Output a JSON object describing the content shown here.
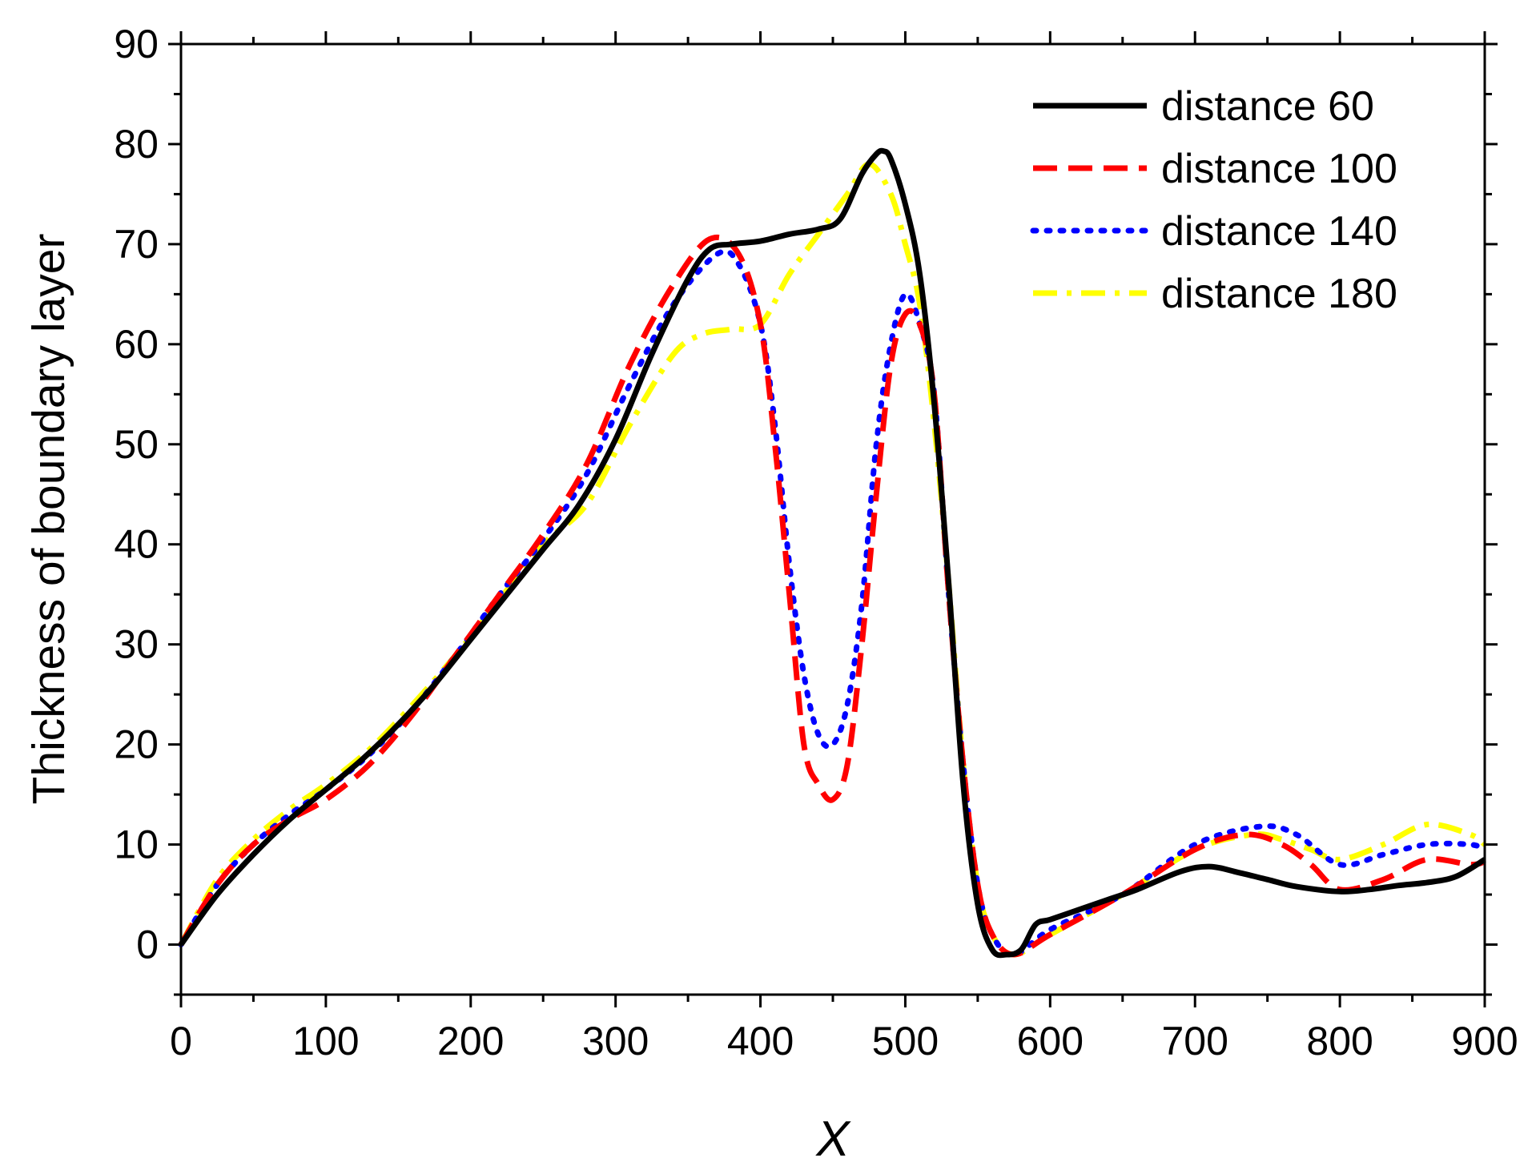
{
  "chart_data": {
    "type": "line",
    "xlabel": "X",
    "ylabel": "Thickness of boundary layer",
    "xlim": [
      0,
      900
    ],
    "ylim": [
      -5,
      90
    ],
    "xticks": [
      0,
      100,
      200,
      300,
      400,
      500,
      600,
      700,
      800,
      900
    ],
    "yticks": [
      0,
      10,
      20,
      30,
      40,
      50,
      60,
      70,
      80,
      90
    ],
    "grid": false,
    "legend_position": "top-right",
    "series": [
      {
        "name": "distance 60",
        "color": "#000000",
        "style": "solid",
        "x": [
          0,
          25,
          50,
          75,
          100,
          125,
          150,
          175,
          200,
          225,
          250,
          275,
          300,
          325,
          350,
          365,
          380,
          400,
          420,
          440,
          455,
          470,
          480,
          485,
          490,
          500,
          510,
          520,
          530,
          540,
          550,
          560,
          570,
          580,
          590,
          600,
          620,
          640,
          660,
          690,
          710,
          730,
          750,
          770,
          800,
          820,
          840,
          860,
          880,
          900
        ],
        "y": [
          0,
          5,
          9,
          12.5,
          15.5,
          18.5,
          22,
          26,
          30.5,
          35,
          39.5,
          44,
          50.5,
          59,
          66.5,
          69.5,
          70,
          70.3,
          71,
          71.5,
          72.5,
          77,
          79,
          79.3,
          78.5,
          74,
          67,
          54,
          36,
          16,
          4,
          -0.5,
          -1,
          -0.5,
          2,
          2.5,
          3.5,
          4.5,
          5.5,
          7.3,
          7.8,
          7.2,
          6.5,
          5.8,
          5.3,
          5.5,
          5.9,
          6.2,
          6.8,
          8.5
        ]
      },
      {
        "name": "distance 100",
        "color": "#ff0000",
        "style": "dashed",
        "x": [
          0,
          25,
          50,
          75,
          100,
          130,
          160,
          190,
          220,
          250,
          280,
          310,
          340,
          365,
          385,
          400,
          410,
          420,
          430,
          440,
          450,
          460,
          470,
          480,
          490,
          500,
          510,
          520,
          530,
          540,
          550,
          560,
          575,
          600,
          650,
          700,
          735,
          760,
          780,
          800,
          830,
          860,
          890,
          900
        ],
        "y": [
          0,
          6,
          10,
          12.5,
          14.5,
          18,
          23,
          29,
          35,
          41,
          48,
          58,
          66,
          70.5,
          69,
          62,
          50,
          35,
          20,
          16,
          14.5,
          18,
          30,
          45,
          58,
          63,
          62,
          55,
          35,
          18,
          6,
          1,
          -1,
          1,
          5,
          9.5,
          11,
          10,
          8,
          5.5,
          6.5,
          8.5,
          8,
          8.3
        ]
      },
      {
        "name": "distance 140",
        "color": "#0000ff",
        "style": "dotted",
        "x": [
          0,
          25,
          50,
          75,
          100,
          130,
          160,
          190,
          220,
          250,
          280,
          310,
          340,
          370,
          385,
          400,
          410,
          420,
          430,
          440,
          450,
          460,
          470,
          480,
          490,
          500,
          510,
          520,
          530,
          540,
          550,
          560,
          575,
          600,
          650,
          700,
          745,
          770,
          800,
          830,
          860,
          890,
          900
        ],
        "y": [
          0,
          6,
          10,
          13,
          15.5,
          19,
          23.5,
          29,
          35,
          40.5,
          47,
          56,
          64,
          69,
          68,
          62,
          52,
          38,
          27,
          21,
          20,
          24,
          34,
          50,
          60,
          65,
          62,
          55,
          35,
          18,
          6,
          1,
          -1,
          1.5,
          5,
          10,
          11.8,
          11,
          8,
          9,
          10,
          10,
          9.5
        ]
      },
      {
        "name": "distance 180",
        "color": "#ffff00",
        "style": "dashdot",
        "x": [
          0,
          25,
          50,
          75,
          100,
          130,
          160,
          190,
          220,
          250,
          280,
          310,
          340,
          360,
          380,
          400,
          420,
          440,
          460,
          475,
          490,
          500,
          510,
          520,
          530,
          540,
          550,
          560,
          575,
          600,
          650,
          700,
          740,
          760,
          780,
          800,
          830,
          860,
          890,
          900
        ],
        "y": [
          0,
          6.5,
          10.5,
          13.5,
          16,
          19.5,
          24,
          29,
          34.5,
          40,
          44,
          52,
          59,
          61,
          61.5,
          62,
          67,
          71,
          75,
          78,
          75,
          70,
          64,
          52,
          36,
          18,
          6,
          1,
          -1,
          1,
          5,
          9.5,
          11,
          10.5,
          9.5,
          8.5,
          10,
          12,
          11,
          10
        ]
      }
    ]
  }
}
